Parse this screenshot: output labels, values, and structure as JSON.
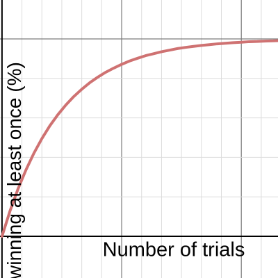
{
  "chart_data": {
    "type": "line",
    "x_label": "Number of trials",
    "y_label": "winning at least once (%)",
    "x": [
      0,
      2,
      4,
      6,
      8,
      10,
      12,
      14,
      16,
      18,
      20,
      22,
      24,
      26,
      28,
      30,
      32,
      34,
      36,
      38,
      40,
      42,
      44,
      46,
      48,
      50,
      52,
      54,
      56,
      58,
      60,
      62,
      64,
      66,
      68,
      70
    ],
    "series": [
      {
        "color": "#cf7272",
        "values": [
          0,
          12.8,
          23.9,
          33.6,
          42.1,
          49.5,
          56.0,
          61.6,
          66.5,
          70.8,
          74.5,
          77.8,
          80.6,
          83.1,
          85.2,
          87.1,
          88.8,
          90.2,
          91.5,
          92.5,
          93.5,
          94.3,
          95.1,
          95.7,
          96.2,
          96.7,
          97.1,
          97.5,
          97.8,
          98.1,
          98.3,
          98.6,
          98.7,
          98.9,
          99.0,
          99.2
        ]
      }
    ],
    "xlim": [
      -0.5,
      69.2
    ],
    "ylim": [
      -21.1,
      119.7
    ],
    "xticks": [
      0,
      5,
      10,
      15,
      20,
      25,
      30,
      35,
      40,
      45,
      50,
      55,
      60,
      65
    ],
    "yticks": [
      0,
      20,
      40,
      60,
      80,
      100
    ],
    "x_major_ticks": [
      30,
      60
    ],
    "y_major_ticks": [
      100
    ],
    "grid": true
  }
}
